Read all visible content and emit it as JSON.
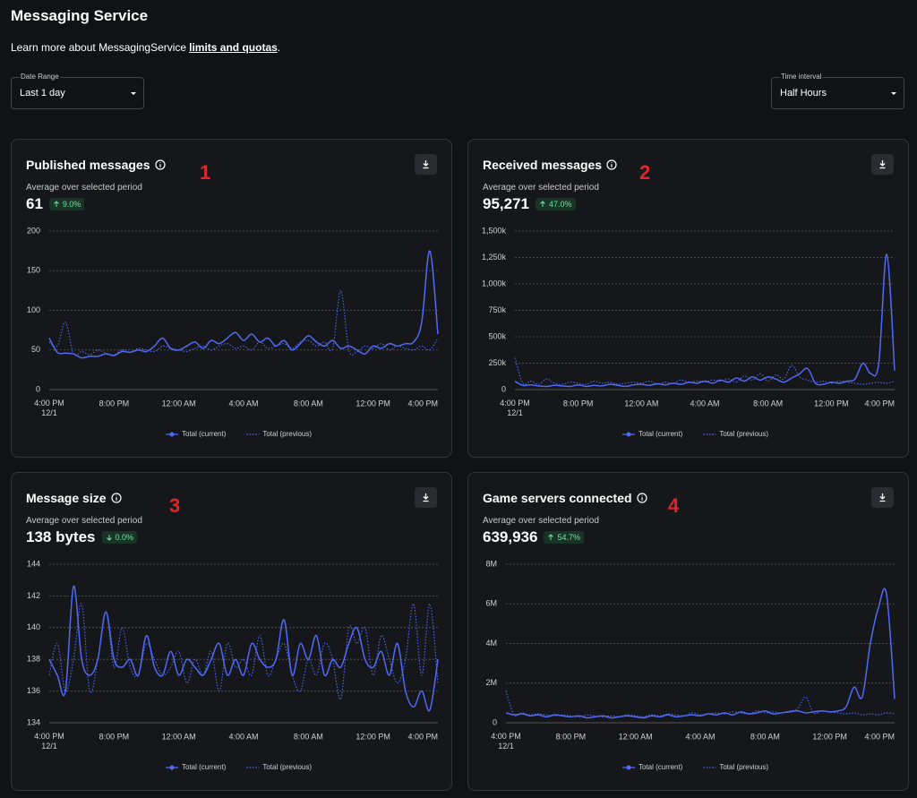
{
  "header": {
    "title": "Messaging Service",
    "description": "Learn more about MessagingService",
    "link": "limits and quotas",
    "punctuation": "."
  },
  "controls": {
    "date_range": {
      "label": "Date Range",
      "value": "Last 1 day"
    },
    "time_interval": {
      "label": "Time interval",
      "value": "Half Hours"
    }
  },
  "chart_data": [
    {
      "type": "line",
      "title": "Published messages",
      "annotation": "1",
      "subtitle": "Average over selected period",
      "average": "61",
      "change": "9.0%",
      "change_direction": "up",
      "categories": [
        "4:00 PM 12/1",
        null,
        null,
        null,
        null,
        null,
        null,
        null,
        "8:00 PM",
        null,
        null,
        null,
        null,
        null,
        null,
        null,
        "12:00 AM",
        null,
        null,
        null,
        null,
        null,
        null,
        null,
        "4:00 AM",
        null,
        null,
        null,
        null,
        null,
        null,
        null,
        "8:00 AM",
        null,
        null,
        null,
        null,
        null,
        null,
        null,
        "12:00 PM",
        null,
        null,
        null,
        null,
        null,
        null,
        null,
        "4:00 PM"
      ],
      "ylim": [
        0,
        200
      ],
      "yticks": [
        0,
        50,
        100,
        150,
        200
      ],
      "grid": true,
      "legend": "bottom",
      "series": [
        {
          "name": "Total (current)",
          "color": "#4f6af5",
          "style": "solid",
          "values": [
            65,
            47,
            46,
            45,
            40,
            42,
            42,
            45,
            43,
            48,
            47,
            50,
            48,
            55,
            65,
            52,
            50,
            55,
            60,
            52,
            62,
            58,
            65,
            72,
            62,
            70,
            60,
            65,
            55,
            62,
            50,
            58,
            68,
            60,
            55,
            62,
            52,
            55,
            50,
            45,
            55,
            52,
            58,
            55,
            58,
            60,
            85,
            175,
            70
          ]
        },
        {
          "name": "Total (previous)",
          "color": "#4f6af5",
          "style": "dotted",
          "values": [
            60,
            55,
            85,
            45,
            48,
            44,
            50,
            46,
            44,
            50,
            47,
            52,
            50,
            48,
            55,
            52,
            50,
            48,
            52,
            55,
            50,
            55,
            58,
            52,
            55,
            50,
            60,
            52,
            55,
            58,
            52,
            60,
            62,
            55,
            60,
            52,
            125,
            50,
            48,
            55,
            52,
            58,
            50,
            55,
            52,
            50,
            55,
            50,
            65
          ]
        }
      ]
    },
    {
      "type": "line",
      "title": "Received messages",
      "annotation": "2",
      "subtitle": "Average over selected period",
      "average": "95,271",
      "change": "47.0%",
      "change_direction": "up",
      "categories": [
        "4:00 PM 12/1",
        null,
        null,
        null,
        null,
        null,
        null,
        null,
        "8:00 PM",
        null,
        null,
        null,
        null,
        null,
        null,
        null,
        "12:00 AM",
        null,
        null,
        null,
        null,
        null,
        null,
        null,
        "4:00 AM",
        null,
        null,
        null,
        null,
        null,
        null,
        null,
        "8:00 AM",
        null,
        null,
        null,
        null,
        null,
        null,
        null,
        "12:00 PM",
        null,
        null,
        null,
        null,
        null,
        null,
        null,
        "4:00 PM"
      ],
      "ylim": [
        0,
        1500000
      ],
      "yticks": [
        0,
        {
          "value": 250000,
          "label": "250k"
        },
        {
          "value": 500000,
          "label": "500k"
        },
        {
          "value": 750000,
          "label": "750k"
        },
        {
          "value": 1000000,
          "label": "1,000k"
        },
        {
          "value": 1250000,
          "label": "1,250k"
        },
        {
          "value": 1500000,
          "label": "1,500k"
        }
      ],
      "grid": true,
      "legend": "bottom",
      "series": [
        {
          "name": "Total (current)",
          "color": "#4f6af5",
          "style": "solid",
          "values": [
            80000,
            40000,
            45000,
            35000,
            30000,
            40000,
            35000,
            30000,
            45000,
            30000,
            40000,
            35000,
            50000,
            40000,
            30000,
            45000,
            50000,
            40000,
            55000,
            45000,
            60000,
            50000,
            70000,
            60000,
            80000,
            60000,
            90000,
            70000,
            110000,
            80000,
            120000,
            90000,
            120000,
            100000,
            70000,
            110000,
            150000,
            200000,
            60000,
            50000,
            70000,
            60000,
            80000,
            100000,
            250000,
            150000,
            250000,
            1280000,
            180000
          ]
        },
        {
          "name": "Total (previous)",
          "color": "#4f6af5",
          "style": "dotted",
          "values": [
            300000,
            60000,
            80000,
            50000,
            100000,
            60000,
            50000,
            70000,
            60000,
            50000,
            80000,
            60000,
            70000,
            50000,
            60000,
            70000,
            60000,
            80000,
            50000,
            70000,
            60000,
            90000,
            70000,
            80000,
            70000,
            90000,
            80000,
            100000,
            70000,
            130000,
            90000,
            150000,
            80000,
            140000,
            100000,
            230000,
            120000,
            90000,
            70000,
            80000,
            60000,
            80000,
            70000,
            60000,
            50000,
            60000,
            70000,
            60000,
            80000
          ]
        }
      ]
    },
    {
      "type": "line",
      "title": "Message size",
      "annotation": "3",
      "subtitle": "Average over selected period",
      "average": "138 bytes",
      "change": "0.0%",
      "change_direction": "down",
      "categories": [
        "4:00 PM 12/1",
        null,
        null,
        null,
        null,
        null,
        null,
        null,
        "8:00 PM",
        null,
        null,
        null,
        null,
        null,
        null,
        null,
        "12:00 AM",
        null,
        null,
        null,
        null,
        null,
        null,
        null,
        "4:00 AM",
        null,
        null,
        null,
        null,
        null,
        null,
        null,
        "8:00 AM",
        null,
        null,
        null,
        null,
        null,
        null,
        null,
        "12:00 PM",
        null,
        null,
        null,
        null,
        null,
        null,
        null,
        "4:00 PM"
      ],
      "ylim": [
        134,
        144
      ],
      "yticks": [
        134,
        136,
        138,
        140,
        142,
        144
      ],
      "grid": true,
      "legend": "bottom",
      "series": [
        {
          "name": "Total (current)",
          "color": "#4f6af5",
          "style": "solid",
          "values": [
            138,
            137,
            136,
            142.6,
            138,
            137,
            138,
            141,
            138,
            137.5,
            138,
            137,
            139.5,
            137.5,
            137,
            138.5,
            137,
            138,
            137.5,
            137,
            138,
            139,
            137,
            138,
            137,
            139,
            138,
            137.5,
            138,
            140.5,
            137,
            139,
            138,
            139.5,
            137,
            138,
            137.5,
            139,
            140,
            138,
            137.5,
            138.5,
            137,
            139,
            136,
            135,
            136,
            134.8,
            138
          ]
        },
        {
          "name": "Total (previous)",
          "color": "#4f6af5",
          "style": "dotted",
          "values": [
            137,
            139,
            136,
            138,
            141.5,
            136,
            138,
            141,
            137.5,
            140,
            137.5,
            137,
            139,
            138,
            137,
            137.5,
            138.5,
            136.5,
            138,
            137,
            138.5,
            136,
            139,
            137.5,
            138,
            137,
            139.5,
            137,
            138,
            139,
            137,
            136,
            138,
            137,
            139,
            138,
            135.5,
            140,
            139,
            140,
            137,
            139.5,
            138,
            136.5,
            138,
            141.5,
            137,
            141.5,
            136.5
          ]
        }
      ]
    },
    {
      "type": "line",
      "title": "Game servers connected",
      "annotation": "4",
      "subtitle": "Average over selected period",
      "average": "639,936",
      "change": "54.7%",
      "change_direction": "up",
      "categories": [
        "4:00 PM 12/1",
        null,
        null,
        null,
        null,
        null,
        null,
        null,
        "8:00 PM",
        null,
        null,
        null,
        null,
        null,
        null,
        null,
        "12:00 AM",
        null,
        null,
        null,
        null,
        null,
        null,
        null,
        "4:00 AM",
        null,
        null,
        null,
        null,
        null,
        null,
        null,
        "8:00 AM",
        null,
        null,
        null,
        null,
        null,
        null,
        null,
        "12:00 PM",
        null,
        null,
        null,
        null,
        null,
        null,
        null,
        "4:00 PM"
      ],
      "ylim": [
        0,
        8000000
      ],
      "yticks": [
        0,
        {
          "value": 2000000,
          "label": "2M"
        },
        {
          "value": 4000000,
          "label": "4M"
        },
        {
          "value": 6000000,
          "label": "6M"
        },
        {
          "value": 8000000,
          "label": "8M"
        }
      ],
      "grid": true,
      "legend": "bottom",
      "series": [
        {
          "name": "Total (current)",
          "color": "#4f6af5",
          "style": "solid",
          "values": [
            500000,
            400000,
            450000,
            350000,
            400000,
            300000,
            400000,
            350000,
            300000,
            350000,
            250000,
            300000,
            350000,
            250000,
            300000,
            350000,
            300000,
            250000,
            350000,
            300000,
            400000,
            300000,
            350000,
            400000,
            350000,
            450000,
            400000,
            500000,
            400000,
            550000,
            450000,
            500000,
            600000,
            450000,
            500000,
            550000,
            600000,
            500000,
            550000,
            600000,
            550000,
            600000,
            800000,
            1800000,
            1300000,
            4000000,
            5800000,
            6500000,
            1200000
          ]
        },
        {
          "name": "Total (previous)",
          "color": "#4f6af5",
          "style": "dotted",
          "values": [
            1600000,
            400000,
            500000,
            400000,
            450000,
            400000,
            350000,
            400000,
            350000,
            300000,
            400000,
            350000,
            300000,
            350000,
            300000,
            400000,
            350000,
            300000,
            400000,
            350000,
            450000,
            400000,
            350000,
            500000,
            400000,
            450000,
            500000,
            450000,
            550000,
            500000,
            450000,
            600000,
            500000,
            550000,
            500000,
            600000,
            700000,
            1300000,
            500000,
            600000,
            550000,
            500000,
            450000,
            500000,
            400000,
            450000,
            400000,
            500000,
            450000
          ]
        }
      ]
    }
  ]
}
